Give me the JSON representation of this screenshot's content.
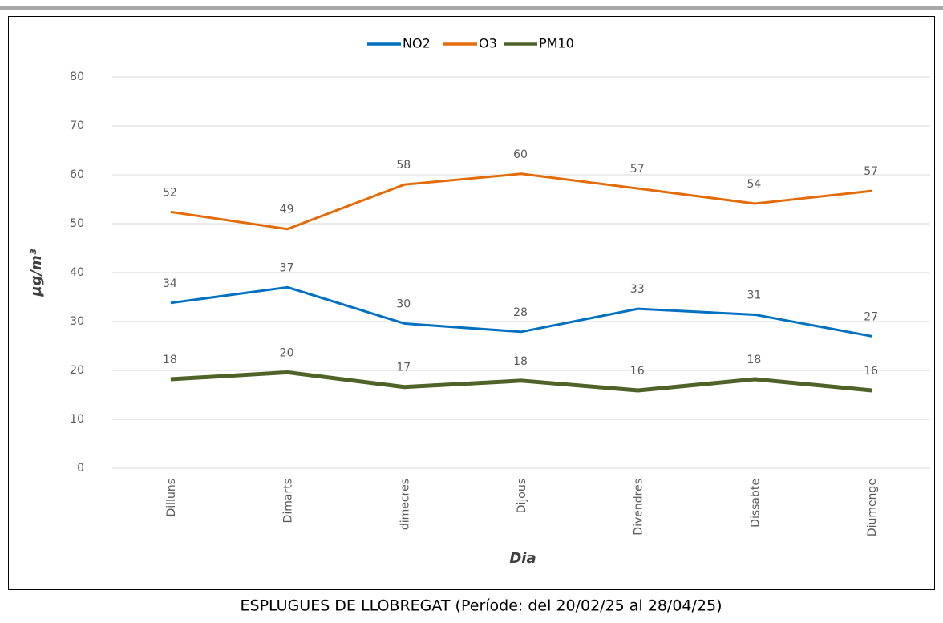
{
  "chart_data": {
    "type": "line",
    "caption": "ESPLUGUES DE LLOBREGAT (Període: del 20/02/25 al 28/04/25)",
    "x_label": "Dia",
    "y_label": "µg/m³",
    "categories": [
      "Dilluns",
      "Dimarts",
      "dimecres",
      "Dijous",
      "Divendres",
      "Dissabte",
      "Diumenge"
    ],
    "series": [
      {
        "name": "NO2",
        "color": "#0070c0",
        "values": [
          33.8,
          37.0,
          29.6,
          27.9,
          32.6,
          31.4,
          27.0
        ],
        "value_labels": [
          "34",
          "37",
          "30",
          "28",
          "33",
          "31",
          "27"
        ]
      },
      {
        "name": "O3",
        "color": "#e36c0a",
        "values": [
          52.4,
          48.9,
          58.0,
          60.2,
          57.2,
          54.1,
          56.7
        ],
        "value_labels": [
          "52",
          "49",
          "58",
          "60",
          "57",
          "54",
          "57"
        ]
      },
      {
        "name": "PM10",
        "color": "#4f6228",
        "values": [
          18.2,
          19.6,
          16.6,
          17.9,
          15.9,
          18.2,
          15.9
        ],
        "value_labels": [
          "18",
          "20",
          "17",
          "18",
          "16",
          "18",
          "16"
        ]
      }
    ],
    "ylim": [
      0,
      80
    ],
    "yticks": [
      0,
      10,
      20,
      30,
      40,
      50,
      60,
      70,
      80
    ],
    "grid": true,
    "legend": "top"
  }
}
